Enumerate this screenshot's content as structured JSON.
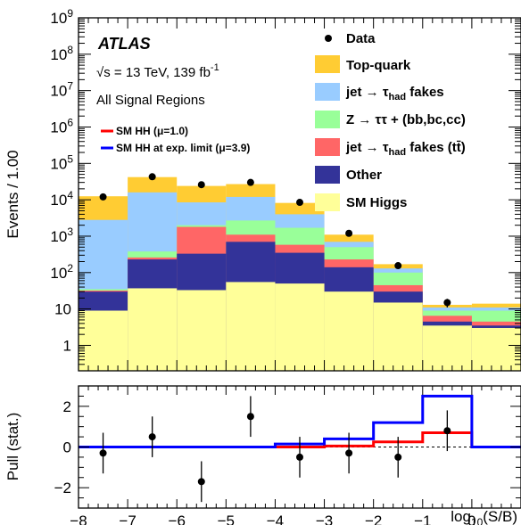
{
  "chart_data": {
    "type": "bar",
    "stacked": true,
    "experiment": "ATLAS",
    "energy_label": "√s = 13 TeV, 139 fb",
    "energy_sup": "-1",
    "region_label": "All Signal Regions",
    "ylabel": "Events / 1.00",
    "pull_ylabel": "Pull (stat.)",
    "xlabel_main": "log",
    "xlabel_sub": "10",
    "xlabel_tail": "(S/B)",
    "x_edges": [
      -8,
      -7,
      -6,
      -5,
      -4,
      -3,
      -2,
      -1,
      0,
      1
    ],
    "xlim": [
      -8,
      1
    ],
    "ylim_log": [
      0.2,
      1000000000
    ],
    "pull_ylim": [
      -3,
      3
    ],
    "x_ticks": [
      -8,
      -7,
      -6,
      -5,
      -4,
      -3,
      -2,
      -1,
      0,
      1
    ],
    "x_tick_labels": [
      "−8",
      "−7",
      "−6",
      "−5",
      "−4",
      "−3",
      "−2",
      "−1",
      "0",
      ""
    ],
    "y_ticks": [
      {
        "value": 1,
        "base": "1",
        "exp": ""
      },
      {
        "value": 10,
        "base": "10",
        "exp": ""
      },
      {
        "value": 100,
        "base": "10",
        "exp": "2"
      },
      {
        "value": 1000,
        "base": "10",
        "exp": "3"
      },
      {
        "value": 10000,
        "base": "10",
        "exp": "4"
      },
      {
        "value": 100000,
        "base": "10",
        "exp": "5"
      },
      {
        "value": 1000000,
        "base": "10",
        "exp": "6"
      },
      {
        "value": 10000000,
        "base": "10",
        "exp": "7"
      },
      {
        "value": 100000000,
        "base": "10",
        "exp": "8"
      },
      {
        "value": 1000000000,
        "base": "10",
        "exp": "9"
      }
    ],
    "pull_y_ticks": [
      -2,
      0,
      2
    ],
    "pull_y_tick_labels": [
      "−2",
      "0",
      "2"
    ],
    "stack_series": [
      {
        "key": "sm_higgs",
        "color": "#ffff99",
        "legend": "SM Higgs",
        "cumulative": [
          9,
          37,
          33,
          55,
          50,
          30,
          15,
          3.5,
          3
        ]
      },
      {
        "key": "other",
        "color": "#333399",
        "legend": "Other",
        "cumulative": [
          30,
          230,
          330,
          700,
          350,
          140,
          30,
          4.5,
          3.5
        ]
      },
      {
        "key": "jet_tau_fakes_ttbar",
        "color": "#ff6666",
        "legend_main": "jet → τ",
        "legend_sub": "had",
        "legend_tail": " fakes (tt̄)",
        "cumulative": [
          32,
          260,
          1800,
          1100,
          580,
          230,
          45,
          6.5,
          4.5
        ]
      },
      {
        "key": "ztautau_hf",
        "color": "#99ff99",
        "legend": "Z → ττ + (bb,bc,cc)",
        "cumulative": [
          35,
          380,
          2000,
          2700,
          1700,
          500,
          100,
          9,
          9
        ]
      },
      {
        "key": "jet_tau_fakes",
        "color": "#99ccff",
        "legend_main": "jet → τ",
        "legend_sub": "had",
        "legend_tail": " fakes",
        "cumulative": [
          2800,
          16000,
          8500,
          12000,
          4000,
          700,
          130,
          11,
          11
        ]
      },
      {
        "key": "top_quark",
        "color": "#ffcc33",
        "legend": "Top-quark",
        "cumulative": [
          12500,
          42000,
          24000,
          27000,
          8200,
          1100,
          170,
          13,
          14
        ]
      }
    ],
    "data": {
      "legend": "Data",
      "x": [
        -7.5,
        -6.5,
        -5.5,
        -4.5,
        -3.5,
        -2.5,
        -1.5,
        -0.5
      ],
      "y": [
        12000,
        43000,
        26000,
        30000,
        8500,
        1200,
        155,
        15
      ],
      "err_low": [
        11000,
        42500,
        25500,
        29600,
        8300,
        1120,
        130,
        11
      ],
      "err_high": [
        13000,
        43500,
        26500,
        30400,
        8700,
        1280,
        180,
        19
      ]
    },
    "signal_series": [
      {
        "key": "sm_hh",
        "color": "#ff0000",
        "legend": "SM HH (μ=1.0)",
        "pull_values": [
          0,
          0,
          0,
          0,
          0,
          0.05,
          0.25,
          0.7,
          0
        ]
      },
      {
        "key": "sm_hh_exp_limit",
        "color": "#0000ff",
        "legend": "SM HH at exp. limit (μ=3.9)",
        "pull_values": [
          0,
          0,
          0,
          0,
          0.15,
          0.4,
          1.2,
          2.5,
          0
        ]
      }
    ],
    "pull_data": {
      "x": [
        -7.5,
        -6.5,
        -5.5,
        -4.5,
        -3.5,
        -2.5,
        -1.5,
        -0.5
      ],
      "y": [
        -0.3,
        0.5,
        -1.7,
        1.5,
        -0.5,
        -0.3,
        -0.5,
        0.8
      ],
      "err": [
        1,
        1,
        1,
        1,
        1,
        1,
        1,
        1
      ]
    },
    "grid": false,
    "legend_position": "top-right"
  }
}
